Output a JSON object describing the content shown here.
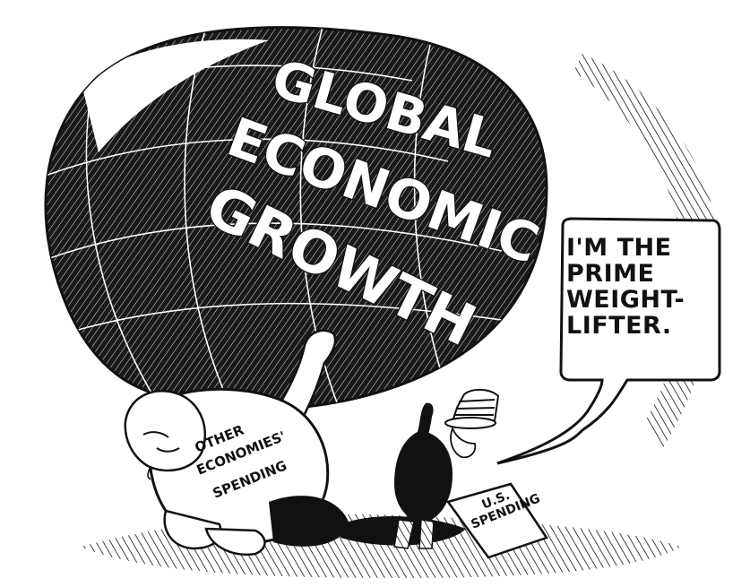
{
  "globe": {
    "line_1": "GLOBAL",
    "line_2": "ECONOMIC",
    "line_3": "GROWTH"
  },
  "shirt": {
    "line_1": "OTHER",
    "line_2": "ECONOMIES'",
    "line_3": "SPENDING"
  },
  "sign": {
    "line_1": "U.S.",
    "line_2": "SPENDING"
  },
  "speech_bubble": {
    "line_1": "I'M THE",
    "line_2": "PRIME",
    "line_3": "WEIGHT-",
    "line_4": "LIFTER."
  },
  "colors": {
    "ink": "#111111",
    "paper": "#ffffff"
  }
}
